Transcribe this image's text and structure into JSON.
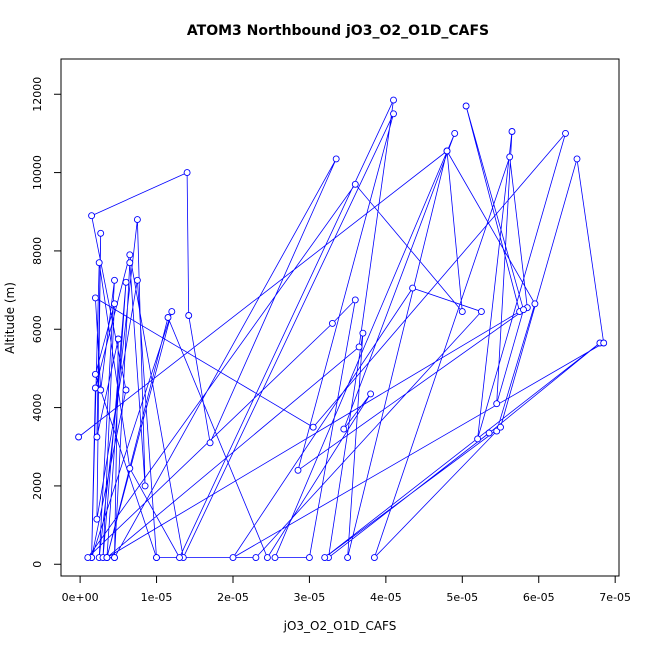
{
  "chart_data": {
    "type": "line",
    "title": "ATOM3 Northbound jO3_O2_O1D_CAFS",
    "xlabel": "jO3_O2_O1D_CAFS",
    "ylabel": "Altitude (m)",
    "xlim": [
      -2.5e-06,
      7.05e-05
    ],
    "ylim": [
      -300,
      12900
    ],
    "x_ticks": [
      0,
      1e-05,
      2e-05,
      3e-05,
      4e-05,
      5e-05,
      6e-05,
      7e-05
    ],
    "x_tick_labels": [
      "0e+00",
      "1e-05",
      "2e-05",
      "3e-05",
      "4e-05",
      "5e-05",
      "6e-05",
      "7e-05"
    ],
    "y_ticks": [
      0,
      2000,
      4000,
      6000,
      8000,
      10000,
      12000
    ],
    "y_tick_labels": [
      "0",
      "2000",
      "4000",
      "6000",
      "8000",
      "10000",
      "12000"
    ],
    "line_color": "#0000ff",
    "marker": "open-circle",
    "grid": false,
    "legend": false,
    "points": [
      [
        -2e-07,
        3250
      ],
      [
        4.8e-05,
        10550
      ],
      [
        5.95e-05,
        6650
      ],
      [
        5.45e-05,
        3400
      ],
      [
        3.85e-05,
        170
      ],
      [
        5.62e-05,
        10400
      ],
      [
        5.85e-05,
        6550
      ],
      [
        2.85e-05,
        2400
      ],
      [
        4.1e-05,
        11500
      ],
      [
        1.35e-05,
        170
      ],
      [
        6.5e-06,
        7900
      ],
      [
        2e-06,
        4500
      ],
      [
        1.5e-06,
        170
      ],
      [
        1.2e-05,
        6450
      ],
      [
        3.5e-06,
        170
      ],
      [
        5.75e-05,
        6450
      ],
      [
        5.05e-05,
        11700
      ],
      [
        5.8e-05,
        6500
      ],
      [
        5.45e-05,
        4100
      ],
      [
        5.65e-05,
        11050
      ],
      [
        5.2e-05,
        3200
      ],
      [
        6.35e-05,
        11000
      ],
      [
        3.05e-05,
        3500
      ],
      [
        2e-06,
        6800
      ],
      [
        2.7e-06,
        4450
      ],
      [
        4.5e-06,
        7250
      ],
      [
        2.5e-06,
        170
      ],
      [
        7.5e-06,
        8800
      ],
      [
        8.5e-06,
        2000
      ],
      [
        6.5e-06,
        7700
      ],
      [
        4.5e-06,
        170
      ],
      [
        5e-06,
        5750
      ],
      [
        2.2e-06,
        3250
      ],
      [
        2.7e-06,
        8450
      ],
      [
        2.2e-06,
        1150
      ],
      [
        7.5e-06,
        7250
      ],
      [
        1e-05,
        170
      ],
      [
        2e-06,
        4850
      ],
      [
        4.5e-06,
        6650
      ],
      [
        3e-06,
        170
      ],
      [
        6e-06,
        7200
      ],
      [
        3.5e-06,
        170
      ],
      [
        3.65e-05,
        5550
      ],
      [
        4.1e-05,
        11850
      ],
      [
        1.3e-05,
        170
      ],
      [
        6.5e-06,
        2450
      ],
      [
        2.5e-06,
        7700
      ],
      [
        1.5e-06,
        170
      ],
      [
        6e-06,
        4450
      ],
      [
        1.5e-06,
        8900
      ],
      [
        1.4e-05,
        10000
      ],
      [
        1.42e-05,
        6350
      ],
      [
        1.7e-05,
        3100
      ],
      [
        3.35e-05,
        10350
      ],
      [
        4.5e-06,
        170
      ],
      [
        3.5e-06,
        170
      ],
      [
        1.15e-05,
        6300
      ],
      [
        2.45e-05,
        170
      ],
      [
        3.8e-05,
        4350
      ],
      [
        3.45e-05,
        3450
      ],
      [
        4.9e-05,
        11000
      ],
      [
        2.55e-05,
        170
      ],
      [
        3e-05,
        170
      ],
      [
        3.6e-05,
        6750
      ],
      [
        3.3e-05,
        6150
      ],
      [
        1e-06,
        170
      ],
      [
        3.6e-05,
        9700
      ],
      [
        5e-05,
        6450
      ],
      [
        4.8e-05,
        10550
      ],
      [
        3.5e-05,
        170
      ],
      [
        3.7e-05,
        5900
      ],
      [
        3.25e-05,
        170
      ],
      [
        5.35e-05,
        3350
      ],
      [
        6.8e-05,
        5650
      ],
      [
        3.2e-05,
        170
      ],
      [
        5.5e-05,
        3500
      ],
      [
        6.5e-05,
        10350
      ],
      [
        6.85e-05,
        5650
      ],
      [
        2e-05,
        170
      ],
      [
        4.35e-05,
        7050
      ],
      [
        5.25e-05,
        6450
      ],
      [
        2.3e-05,
        170
      ],
      [
        1e-05,
        170
      ]
    ]
  }
}
